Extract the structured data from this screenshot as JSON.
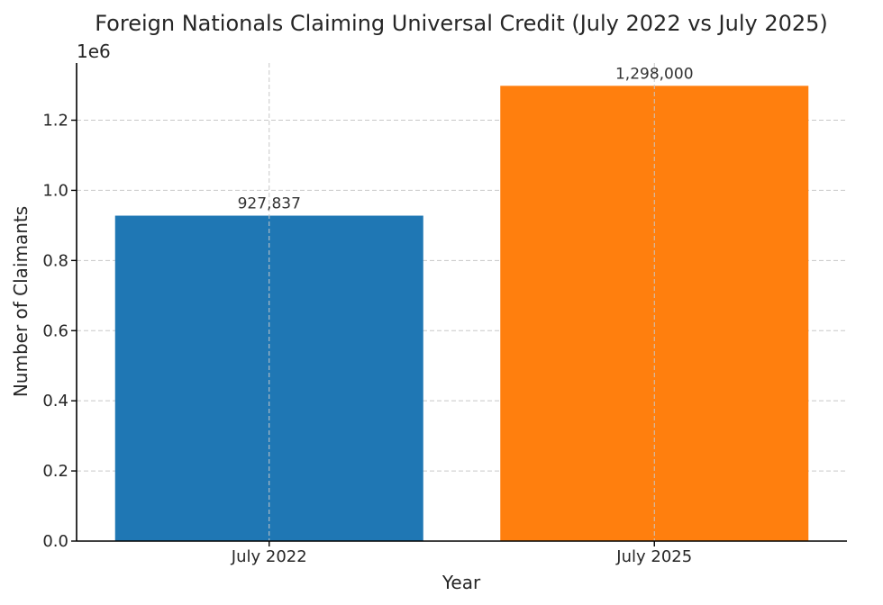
{
  "chart_data": {
    "type": "bar",
    "title": "Foreign Nationals Claiming Universal Credit (July 2022 vs July 2025)",
    "xlabel": "Year",
    "ylabel": "Number of Claimants",
    "y_offset_text": "1e6",
    "categories": [
      "July 2022",
      "July 2025"
    ],
    "values": [
      927837,
      1298000
    ],
    "data_labels": [
      "927,837",
      "1,298,000"
    ],
    "colors": [
      "#1f77b4",
      "#ff7f0e"
    ],
    "ylim": [
      0,
      1363000
    ],
    "yticks": [
      0,
      200000,
      400000,
      600000,
      800000,
      1000000,
      1200000
    ],
    "ytick_labels": [
      "0.0",
      "0.2",
      "0.4",
      "0.6",
      "0.8",
      "1.0",
      "1.2"
    ],
    "grid": true
  }
}
